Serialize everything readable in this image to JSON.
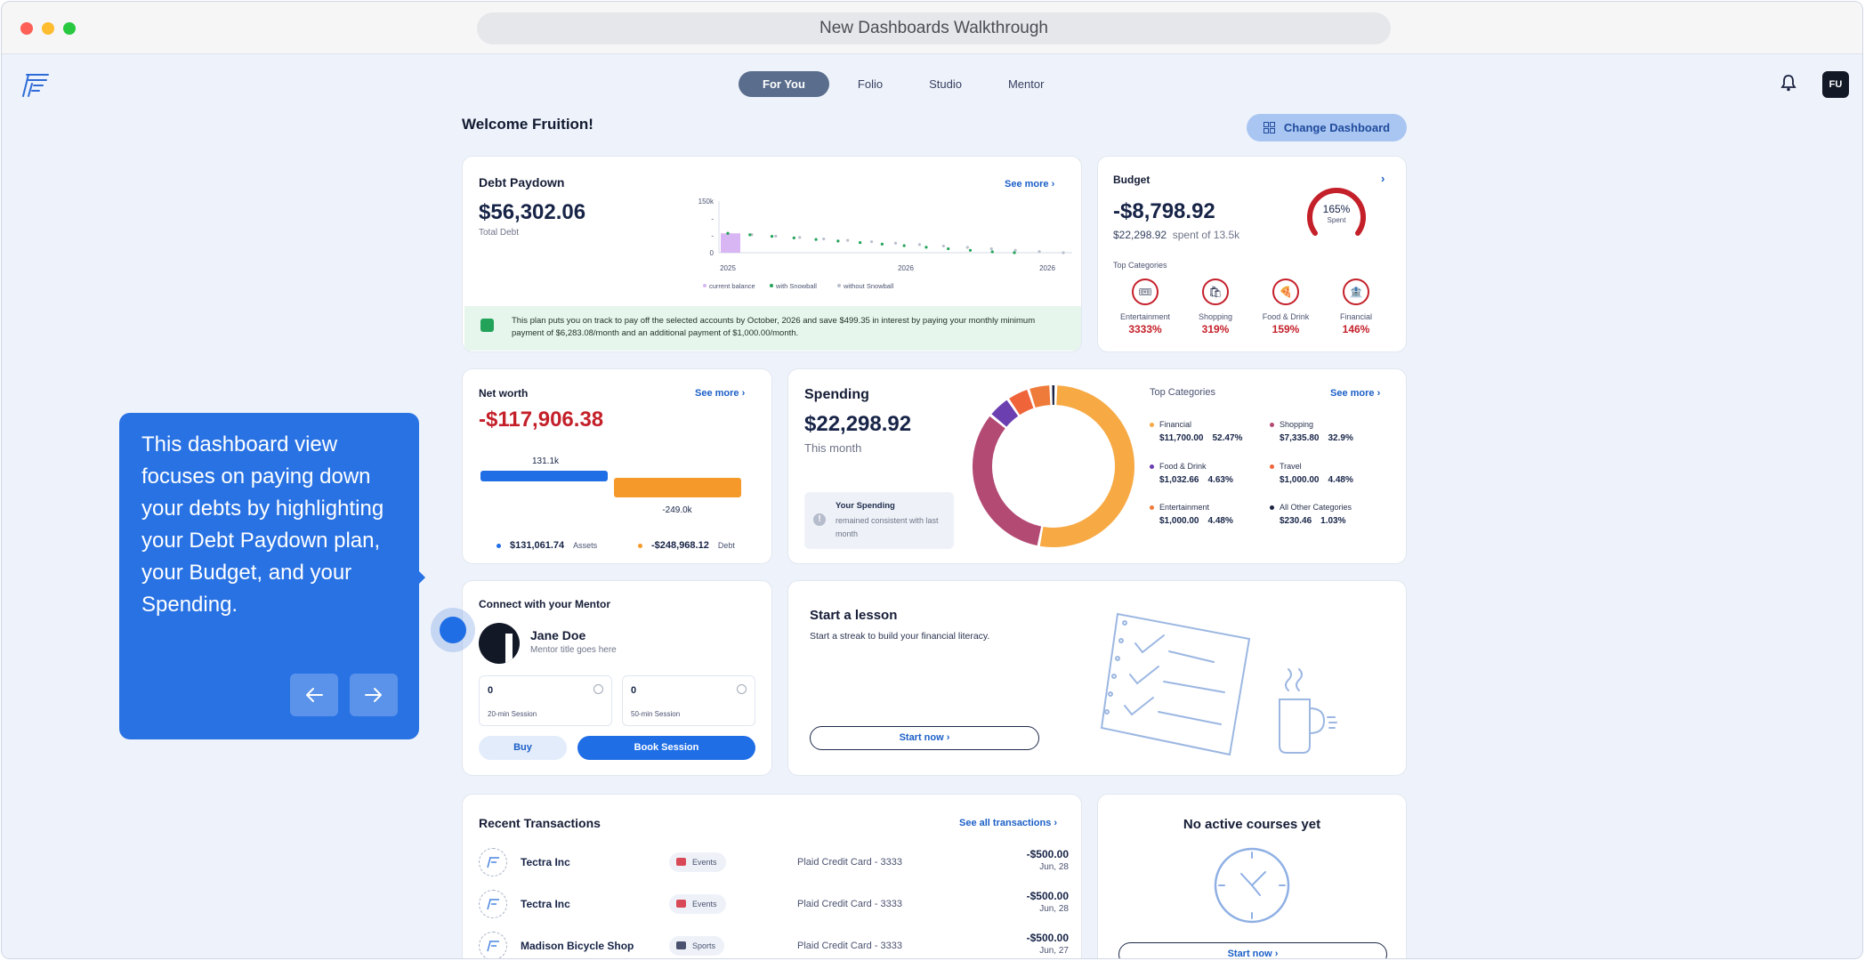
{
  "window": {
    "title": "New Dashboards Walkthrough"
  },
  "nav": {
    "tabs": [
      "For You",
      "Folio",
      "Studio",
      "Mentor"
    ],
    "active": "For You"
  },
  "user": {
    "initials": "FU"
  },
  "welcome": "Welcome Fruition!",
  "change_dashboard": "Change Dashboard",
  "debt": {
    "title": "Debt Paydown",
    "see_more": "See more",
    "amount": "$56,302.06",
    "sub": "Total Debt",
    "banner": "This plan puts you on track to pay off the selected accounts by October, 2026 and save $499.35 in interest by paying your monthly minimum payment of $6,283.08/month and an additional payment of $1,000.00/month."
  },
  "chart_data": {
    "type": "line",
    "title": "",
    "xlabel": "",
    "ylabel": "",
    "x_ticks": [
      "2025",
      "2026",
      "2026"
    ],
    "y_ticks": [
      "150k",
      "-",
      "-",
      "0"
    ],
    "ylim": [
      0,
      150000
    ],
    "legend": [
      "current balance",
      "with Snowball",
      "without Snowball"
    ],
    "legend_position": "bottom",
    "series": [
      {
        "name": "current balance",
        "values": [
          56302
        ]
      },
      {
        "name": "with Snowball",
        "values": [
          56302,
          52000,
          47500,
          43000,
          38500,
          34000,
          29500,
          25000,
          20500,
          16000,
          11500,
          7000,
          2500,
          0
        ]
      },
      {
        "name": "without Snowball",
        "values": [
          56302,
          52400,
          48300,
          44200,
          40100,
          36000,
          31900,
          27800,
          23700,
          19600,
          15500,
          11400,
          7300,
          3200,
          0
        ]
      }
    ],
    "colors": {
      "current balance": "#d8b6f3",
      "with Snowball": "#23a35a",
      "without Snowball": "#b9c0cc"
    }
  },
  "budget": {
    "title": "Budget",
    "amount": "-$8,798.92",
    "spent_amount": "$22,298.92",
    "spent_suffix": "spent of 13.5k",
    "gauge_pct_label": "165%",
    "gauge_sub": "Spent",
    "gauge_fraction": 1.65,
    "top_categories_label": "Top Categories",
    "categories": [
      {
        "name": "Entertainment",
        "pct": "3333%",
        "icon": "ticket-icon"
      },
      {
        "name": "Shopping",
        "pct": "319%",
        "icon": "shopping-bag-icon"
      },
      {
        "name": "Food & Drink",
        "pct": "159%",
        "icon": "food-icon"
      },
      {
        "name": "Financial",
        "pct": "146%",
        "icon": "bank-icon"
      }
    ]
  },
  "networth": {
    "title": "Net worth",
    "see_more": "See more",
    "amount": "-$117,906.38",
    "assets_bar_label": "131.1k",
    "debt_bar_label": "-249.0k",
    "assets_value": "$131,061.74",
    "assets_label": "Assets",
    "debt_value": "-$248,968.12",
    "debt_label": "Debt",
    "assets_color": "#1f6ee6",
    "debt_color": "#f59a2a"
  },
  "spending": {
    "title": "Spending",
    "amount": "$22,298.92",
    "sub": "This month",
    "note_title": "Your Spending",
    "note_text": "remained consistent with last month",
    "top_categories_label": "Top Categories",
    "see_more": "See more",
    "categories": [
      {
        "name": "Financial",
        "amount": "$11,700.00",
        "pct": "52.47%",
        "share": 52.47,
        "color": "#f7a944"
      },
      {
        "name": "Shopping",
        "amount": "$7,335.80",
        "pct": "32.9%",
        "share": 32.9,
        "color": "#b34a74"
      },
      {
        "name": "Food & Drink",
        "amount": "$1,032.66",
        "pct": "4.63%",
        "share": 4.63,
        "color": "#6b3fb0"
      },
      {
        "name": "Travel",
        "amount": "$1,000.00",
        "pct": "4.48%",
        "share": 4.48,
        "color": "#f0643a"
      },
      {
        "name": "Entertainment",
        "amount": "$1,000.00",
        "pct": "4.48%",
        "share": 4.48,
        "color": "#ef7b3a"
      },
      {
        "name": "All Other Categories",
        "amount": "$230.46",
        "pct": "1.03%",
        "share": 1.03,
        "color": "#1b2340"
      }
    ]
  },
  "mentor": {
    "title": "Connect with your Mentor",
    "name": "Jane Doe",
    "role": "Mentor title goes here",
    "sessions": [
      {
        "count": "0",
        "label": "20-min Session"
      },
      {
        "count": "0",
        "label": "50-min Session"
      }
    ],
    "buy": "Buy",
    "book": "Book Session"
  },
  "lesson": {
    "title": "Start a lesson",
    "sub": "Start a streak to build your financial literacy.",
    "button": "Start now"
  },
  "transactions": {
    "title": "Recent Transactions",
    "see_all": "See all transactions",
    "rows": [
      {
        "merchant": "Tectra Inc",
        "tag": "Events",
        "account": "Plaid Credit Card - 3333",
        "amount": "-$500.00",
        "date": "Jun, 28",
        "tag_color": "#d94a58"
      },
      {
        "merchant": "Tectra Inc",
        "tag": "Events",
        "account": "Plaid Credit Card - 3333",
        "amount": "-$500.00",
        "date": "Jun, 28",
        "tag_color": "#d94a58"
      },
      {
        "merchant": "Madison Bicycle Shop",
        "tag": "Sports",
        "account": "Plaid Credit Card - 3333",
        "amount": "-$500.00",
        "date": "Jun, 27",
        "tag_color": "#4a5270"
      }
    ]
  },
  "courses": {
    "title": "No active courses yet",
    "button": "Start now"
  },
  "tooltip": {
    "text": "This dashboard view focuses on paying down your debts by highlighting your Debt Paydown plan, your Budget, and your Spending."
  }
}
